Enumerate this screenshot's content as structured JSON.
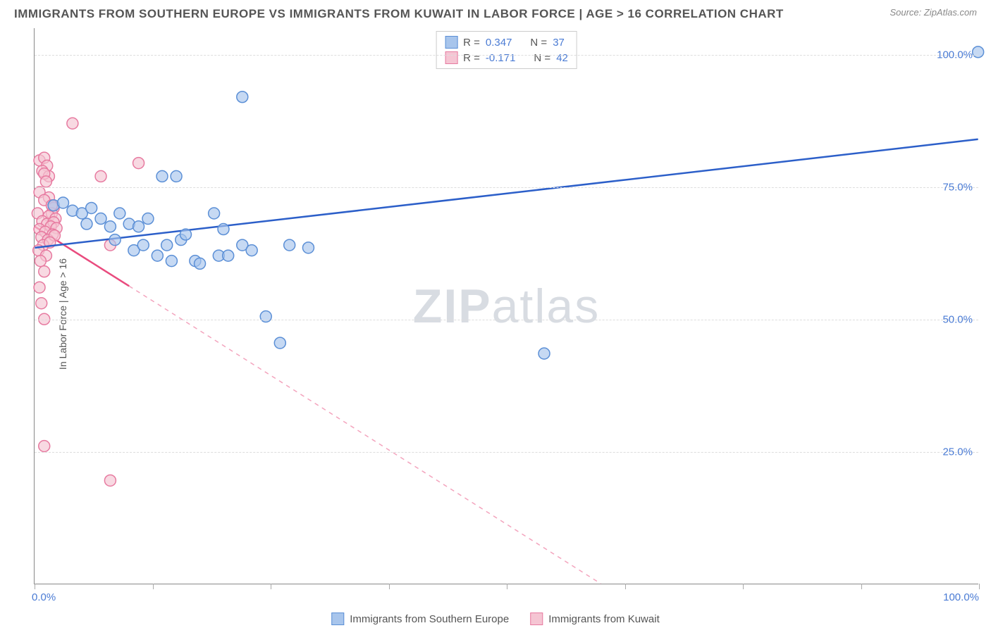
{
  "title": "IMMIGRANTS FROM SOUTHERN EUROPE VS IMMIGRANTS FROM KUWAIT IN LABOR FORCE | AGE > 16 CORRELATION CHART",
  "source": "Source: ZipAtlas.com",
  "ylabel": "In Labor Force | Age > 16",
  "watermark_a": "ZIP",
  "watermark_b": "atlas",
  "chart": {
    "type": "scatter",
    "xlim": [
      0,
      100
    ],
    "ylim": [
      0,
      105
    ],
    "y_ticks": [
      25,
      50,
      75,
      100
    ],
    "y_tick_labels": [
      "25.0%",
      "50.0%",
      "75.0%",
      "100.0%"
    ],
    "x_ticks": [
      0,
      12.5,
      25,
      37.5,
      50,
      62.5,
      75,
      87.5,
      100
    ],
    "x_tick_labels_shown": {
      "0": "0.0%",
      "100": "100.0%"
    },
    "background_color": "#ffffff",
    "grid_color": "#dddddd",
    "marker_radius": 8,
    "marker_stroke_width": 1.5,
    "line_width": 2.5
  },
  "series": {
    "blue": {
      "label": "Immigrants from Southern Europe",
      "fill": "#a8c5ec",
      "stroke": "#5b8fd6",
      "line_color": "#2c5fc9",
      "r_label": "R =",
      "r_value": "0.347",
      "n_label": "N =",
      "n_value": "37",
      "trend": {
        "x1": 0,
        "y1": 63.5,
        "x2": 100,
        "y2": 84
      },
      "trend_solid_until_x": 100,
      "points": [
        [
          100,
          100.5
        ],
        [
          22,
          92
        ],
        [
          2,
          71.5
        ],
        [
          3,
          72
        ],
        [
          4,
          70.5
        ],
        [
          5,
          70
        ],
        [
          5.5,
          68
        ],
        [
          6,
          71
        ],
        [
          7,
          69
        ],
        [
          8,
          67.5
        ],
        [
          8.5,
          65
        ],
        [
          9,
          70
        ],
        [
          10,
          68
        ],
        [
          10.5,
          63
        ],
        [
          11,
          67.5
        ],
        [
          11.5,
          64
        ],
        [
          12,
          69
        ],
        [
          13,
          62
        ],
        [
          13.5,
          77
        ],
        [
          14,
          64
        ],
        [
          14.5,
          61
        ],
        [
          15,
          77
        ],
        [
          15.5,
          65
        ],
        [
          16,
          66
        ],
        [
          17,
          61
        ],
        [
          17.5,
          60.5
        ],
        [
          19,
          70
        ],
        [
          19.5,
          62
        ],
        [
          20,
          67
        ],
        [
          20.5,
          62
        ],
        [
          22,
          64
        ],
        [
          23,
          63
        ],
        [
          24.5,
          50.5
        ],
        [
          26,
          45.5
        ],
        [
          27,
          64
        ],
        [
          29,
          63.5
        ],
        [
          54,
          43.5
        ]
      ]
    },
    "pink": {
      "label": "Immigrants from Kuwait",
      "fill": "#f5c5d3",
      "stroke": "#e77aa0",
      "line_color": "#e94b7e",
      "r_label": "R =",
      "r_value": "-0.171",
      "n_label": "N =",
      "n_value": "42",
      "trend": {
        "x1": 0,
        "y1": 67.5,
        "x2": 60,
        "y2": 0
      },
      "trend_solid_until_x": 10,
      "points": [
        [
          4,
          87
        ],
        [
          0.5,
          80
        ],
        [
          1,
          80.5
        ],
        [
          1.3,
          79
        ],
        [
          0.8,
          78
        ],
        [
          1.5,
          77
        ],
        [
          1,
          77.5
        ],
        [
          11,
          79.5
        ],
        [
          1.2,
          76
        ],
        [
          0.5,
          74
        ],
        [
          1.5,
          73
        ],
        [
          1,
          72.5
        ],
        [
          2,
          71
        ],
        [
          1.8,
          70
        ],
        [
          0.3,
          70
        ],
        [
          1.5,
          69.5
        ],
        [
          2.2,
          69
        ],
        [
          0.8,
          68.5
        ],
        [
          1.3,
          68
        ],
        [
          2,
          68.3
        ],
        [
          1.7,
          67.5
        ],
        [
          0.5,
          67
        ],
        [
          1.1,
          66.5
        ],
        [
          2.3,
          67.2
        ],
        [
          1.9,
          66
        ],
        [
          0.7,
          65.5
        ],
        [
          1.4,
          65
        ],
        [
          2.1,
          65.8
        ],
        [
          0.9,
          64
        ],
        [
          1.6,
          64.5
        ],
        [
          0.4,
          63
        ],
        [
          1.2,
          62
        ],
        [
          0.6,
          61
        ],
        [
          1,
          59
        ],
        [
          0.5,
          56
        ],
        [
          0.7,
          53
        ],
        [
          1,
          50
        ],
        [
          7,
          77
        ],
        [
          8,
          64
        ],
        [
          1.8,
          71.5
        ],
        [
          1,
          26
        ],
        [
          8,
          19.5
        ]
      ]
    }
  }
}
